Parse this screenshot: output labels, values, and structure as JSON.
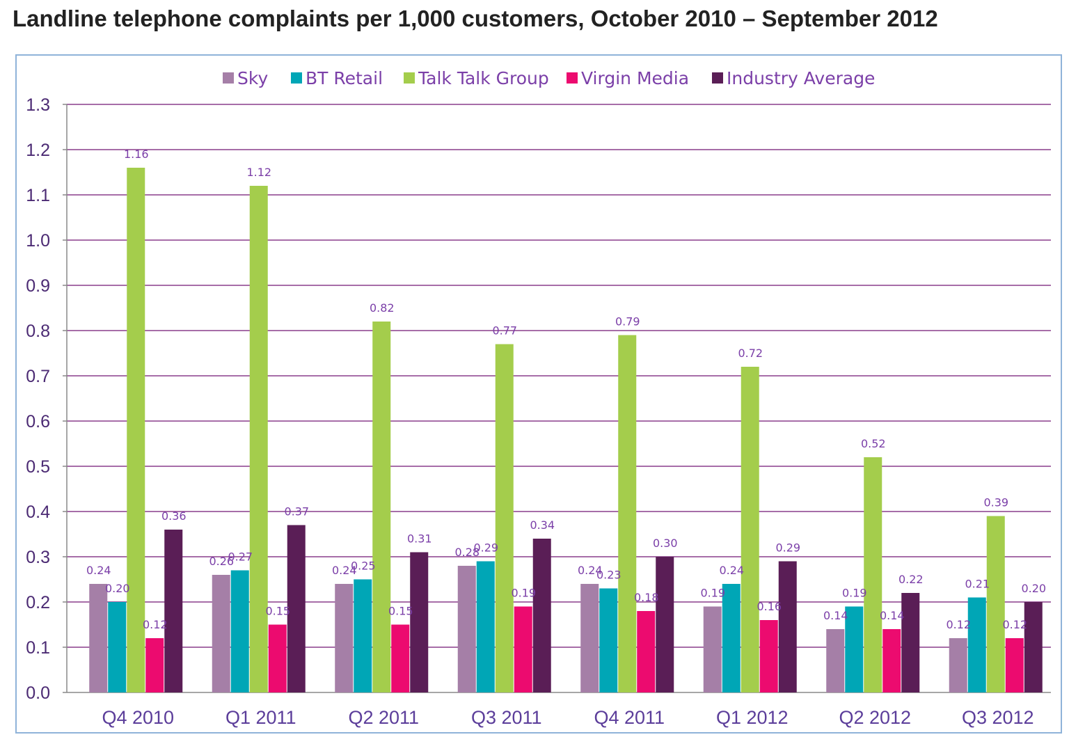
{
  "title": "Landline telephone complaints per 1,000 customers, October 2010 – September 2012",
  "colors": {
    "grid": "#8a3d8c",
    "axis": "#888888",
    "tick_text": "#4b2a73",
    "category_text": "#5b3d9a",
    "legend_text": "#7b3fa8",
    "data_label": "#7b3fa8",
    "frame": "#8fb3d9"
  },
  "chart_data": {
    "type": "bar",
    "title": "Landline telephone complaints per 1,000 customers, October 2010 – September 2012",
    "xlabel": "",
    "ylabel": "",
    "ylim": [
      0,
      1.3
    ],
    "yticks": [
      "0.0",
      "0.1",
      "0.2",
      "0.3",
      "0.4",
      "0.5",
      "0.6",
      "0.7",
      "0.8",
      "0.9",
      "1.0",
      "1.1",
      "1.2",
      "1.3"
    ],
    "grid": true,
    "legend": "top",
    "categories": [
      "Q4 2010",
      "Q1 2011",
      "Q2 2011",
      "Q3 2011",
      "Q4 2011",
      "Q1 2012",
      "Q2 2012",
      "Q3 2012"
    ],
    "series": [
      {
        "name": "Sky",
        "color": "#a57fa7",
        "values": [
          0.24,
          0.26,
          0.24,
          0.28,
          0.24,
          0.19,
          0.14,
          0.12
        ],
        "labels": [
          "0.24",
          "0.26",
          "0.24",
          "0.28",
          "0.24",
          "0.19",
          "0.14",
          "0.12"
        ]
      },
      {
        "name": "BT Retail",
        "color": "#00a6b6",
        "values": [
          0.2,
          0.27,
          0.25,
          0.29,
          0.23,
          0.24,
          0.19,
          0.21
        ],
        "labels": [
          "0.20",
          "0.27",
          "0.25",
          "0.29",
          "0.23",
          "0.24",
          "0.19",
          "0.21"
        ]
      },
      {
        "name": "Talk Talk Group",
        "color": "#a4cd4c",
        "values": [
          1.16,
          1.12,
          0.82,
          0.77,
          0.79,
          0.72,
          0.52,
          0.39
        ],
        "labels": [
          "1.16",
          "1.12",
          "0.82",
          "0.77",
          "0.79",
          "0.72",
          "0.52",
          "0.39"
        ]
      },
      {
        "name": "Virgin Media",
        "color": "#ec0b6f",
        "values": [
          0.12,
          0.15,
          0.15,
          0.19,
          0.18,
          0.16,
          0.14,
          0.12
        ],
        "labels": [
          "0.12",
          "0.15",
          "0.15",
          "0.19",
          "0.18",
          "0.16",
          "0.14",
          "0.12"
        ]
      },
      {
        "name": "Industry Average",
        "color": "#5a1e56",
        "values": [
          0.36,
          0.37,
          0.31,
          0.34,
          0.3,
          0.29,
          0.22,
          0.2
        ],
        "labels": [
          "0.36",
          "0.37",
          "0.31",
          "0.34",
          "0.30",
          "0.29",
          "0.22",
          "0.20"
        ]
      }
    ]
  }
}
